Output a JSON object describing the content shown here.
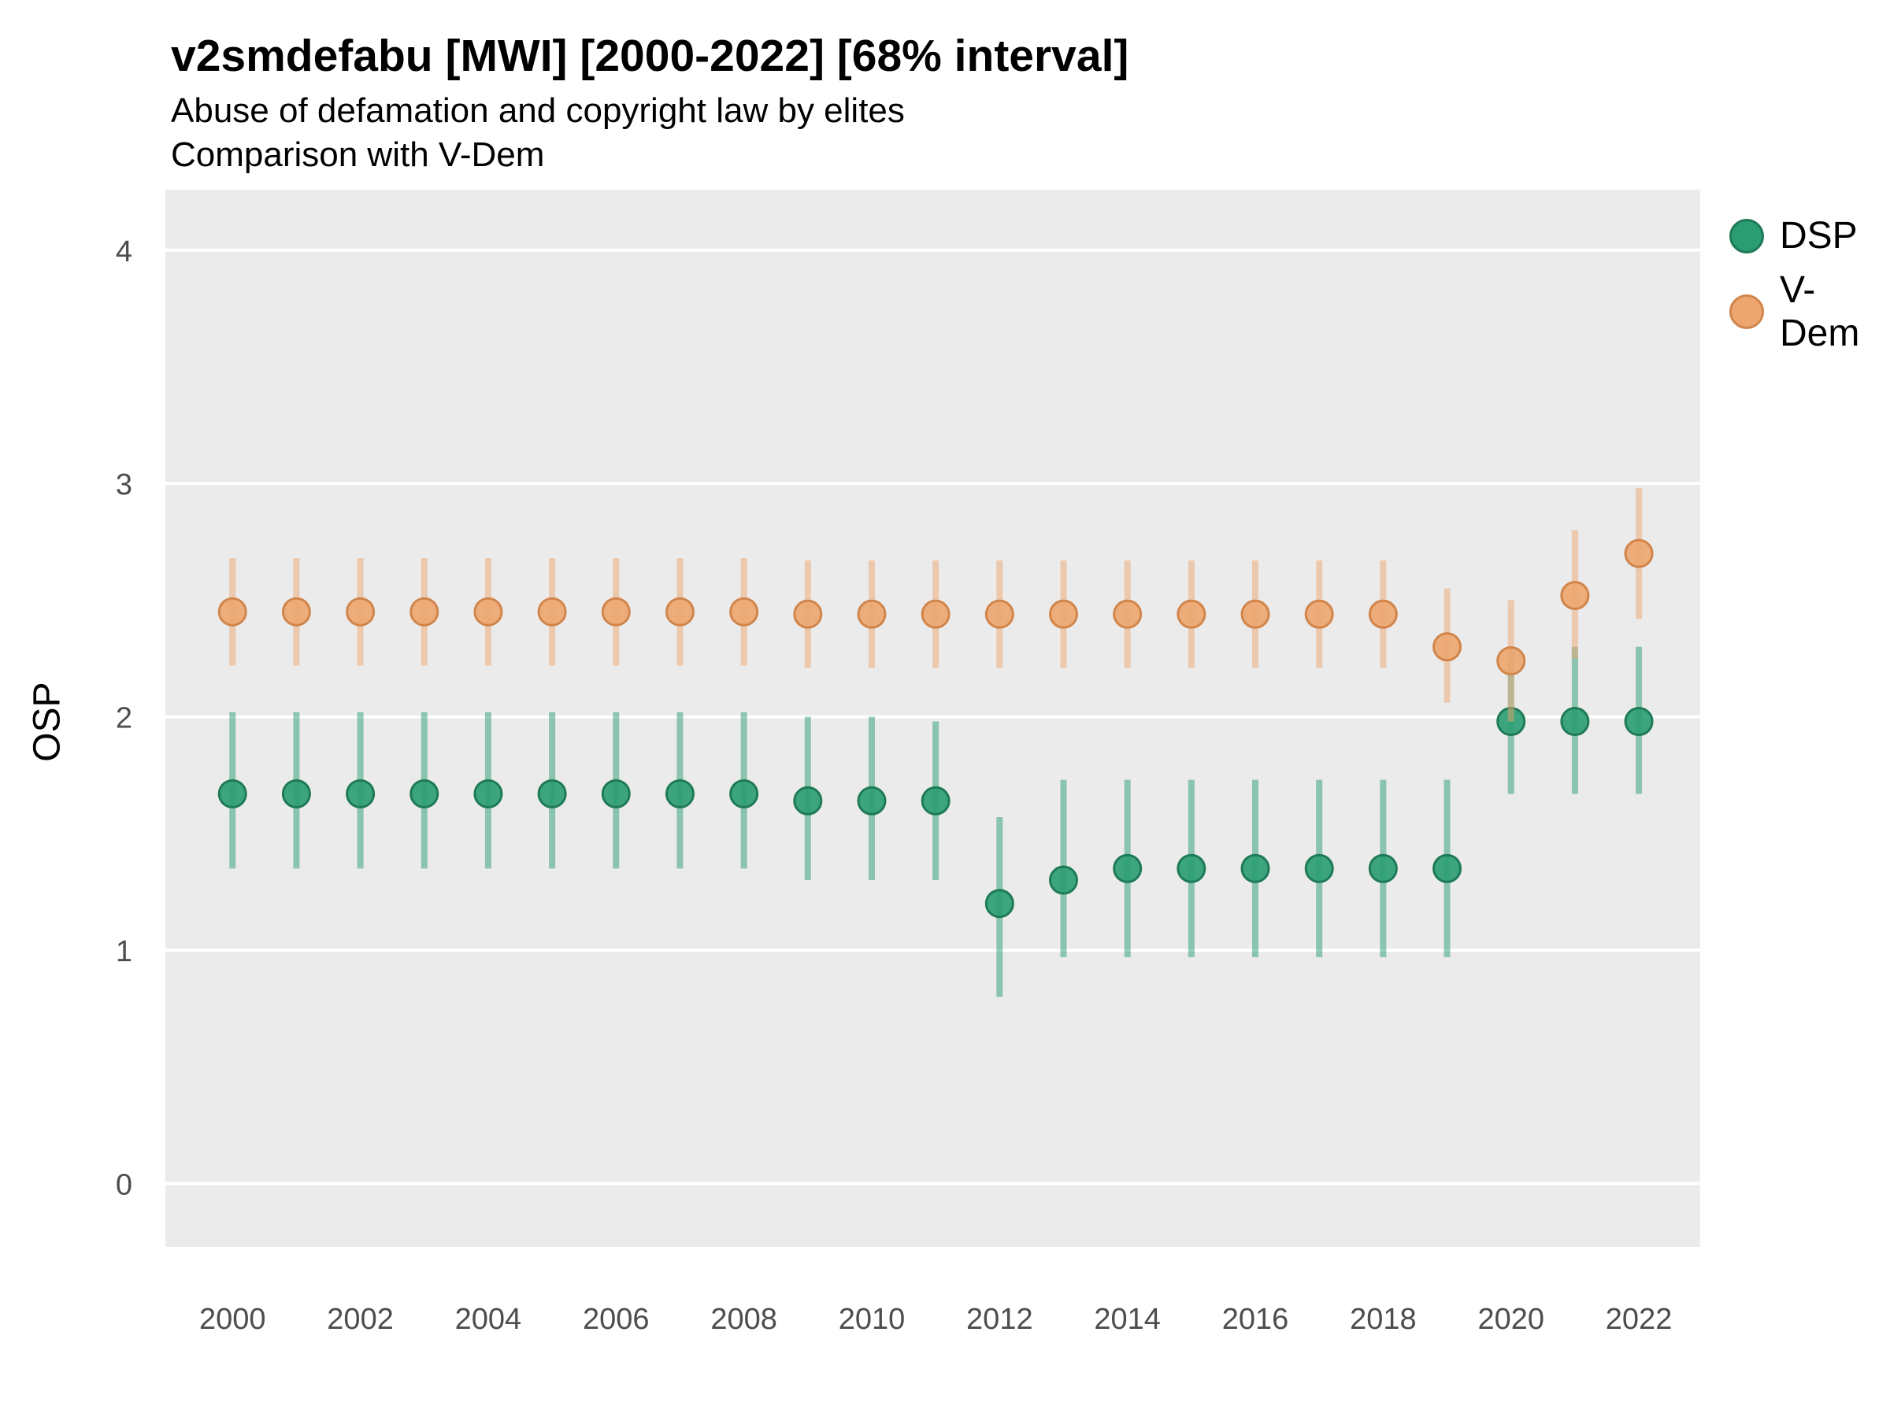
{
  "header": {
    "title": "v2smdefabu [MWI] [2000-2022] [68% interval]",
    "subtitle": "Abuse of defamation and copyright law by elites",
    "note": "Comparison with V-Dem"
  },
  "chart_data": {
    "type": "scatter",
    "subtype": "pointrange",
    "title": "v2smdefabu [MWI] [2000-2022] [68% interval]",
    "subtitle": "Abuse of defamation and copyright law by elites",
    "annotation": "Comparison with V-Dem",
    "interval": "68% interval",
    "xlabel": "",
    "ylabel": "OSP",
    "yticks": [
      0,
      1,
      2,
      3,
      4
    ],
    "xticks": [
      2000,
      2002,
      2004,
      2006,
      2008,
      2010,
      2012,
      2014,
      2016,
      2018,
      2020,
      2022
    ],
    "ylim": [
      -0.272,
      4.259
    ],
    "xlim": [
      1998.95,
      2022.96
    ],
    "grid": "horizontal-major",
    "legend_position": "right",
    "panel_bg": "#ebebeb",
    "grid_color": "#ffffff",
    "tick_label_color": "#4d4d4d",
    "series": [
      {
        "name": "DSP",
        "color": "#2a9d72",
        "stroke": "#1e7a57",
        "points": [
          {
            "year": 2000,
            "est": 1.67,
            "lo": 1.35,
            "hi": 2.02
          },
          {
            "year": 2001,
            "est": 1.67,
            "lo": 1.35,
            "hi": 2.02
          },
          {
            "year": 2002,
            "est": 1.67,
            "lo": 1.35,
            "hi": 2.02
          },
          {
            "year": 2003,
            "est": 1.67,
            "lo": 1.35,
            "hi": 2.02
          },
          {
            "year": 2004,
            "est": 1.67,
            "lo": 1.35,
            "hi": 2.02
          },
          {
            "year": 2005,
            "est": 1.67,
            "lo": 1.35,
            "hi": 2.02
          },
          {
            "year": 2006,
            "est": 1.67,
            "lo": 1.35,
            "hi": 2.02
          },
          {
            "year": 2007,
            "est": 1.67,
            "lo": 1.35,
            "hi": 2.02
          },
          {
            "year": 2008,
            "est": 1.67,
            "lo": 1.35,
            "hi": 2.02
          },
          {
            "year": 2009,
            "est": 1.64,
            "lo": 1.3,
            "hi": 2.0
          },
          {
            "year": 2010,
            "est": 1.64,
            "lo": 1.3,
            "hi": 2.0
          },
          {
            "year": 2011,
            "est": 1.64,
            "lo": 1.3,
            "hi": 1.98
          },
          {
            "year": 2012,
            "est": 1.2,
            "lo": 0.8,
            "hi": 1.57
          },
          {
            "year": 2013,
            "est": 1.3,
            "lo": 0.97,
            "hi": 1.73
          },
          {
            "year": 2014,
            "est": 1.35,
            "lo": 0.97,
            "hi": 1.73
          },
          {
            "year": 2015,
            "est": 1.35,
            "lo": 0.97,
            "hi": 1.73
          },
          {
            "year": 2016,
            "est": 1.35,
            "lo": 0.97,
            "hi": 1.73
          },
          {
            "year": 2017,
            "est": 1.35,
            "lo": 0.97,
            "hi": 1.73
          },
          {
            "year": 2018,
            "est": 1.35,
            "lo": 0.97,
            "hi": 1.73
          },
          {
            "year": 2019,
            "est": 1.35,
            "lo": 0.97,
            "hi": 1.73
          },
          {
            "year": 2020,
            "est": 1.98,
            "lo": 1.67,
            "hi": 2.3
          },
          {
            "year": 2021,
            "est": 1.98,
            "lo": 1.67,
            "hi": 2.3
          },
          {
            "year": 2022,
            "est": 1.98,
            "lo": 1.67,
            "hi": 2.3
          }
        ]
      },
      {
        "name": "V-Dem",
        "color": "#eda66f",
        "stroke": "#d1854a",
        "points": [
          {
            "year": 2000,
            "est": 2.45,
            "lo": 2.22,
            "hi": 2.68
          },
          {
            "year": 2001,
            "est": 2.45,
            "lo": 2.22,
            "hi": 2.68
          },
          {
            "year": 2002,
            "est": 2.45,
            "lo": 2.22,
            "hi": 2.68
          },
          {
            "year": 2003,
            "est": 2.45,
            "lo": 2.22,
            "hi": 2.68
          },
          {
            "year": 2004,
            "est": 2.45,
            "lo": 2.22,
            "hi": 2.68
          },
          {
            "year": 2005,
            "est": 2.45,
            "lo": 2.22,
            "hi": 2.68
          },
          {
            "year": 2006,
            "est": 2.45,
            "lo": 2.22,
            "hi": 2.68
          },
          {
            "year": 2007,
            "est": 2.45,
            "lo": 2.22,
            "hi": 2.68
          },
          {
            "year": 2008,
            "est": 2.45,
            "lo": 2.22,
            "hi": 2.68
          },
          {
            "year": 2009,
            "est": 2.44,
            "lo": 2.21,
            "hi": 2.67
          },
          {
            "year": 2010,
            "est": 2.44,
            "lo": 2.21,
            "hi": 2.67
          },
          {
            "year": 2011,
            "est": 2.44,
            "lo": 2.21,
            "hi": 2.67
          },
          {
            "year": 2012,
            "est": 2.44,
            "lo": 2.21,
            "hi": 2.67
          },
          {
            "year": 2013,
            "est": 2.44,
            "lo": 2.21,
            "hi": 2.67
          },
          {
            "year": 2014,
            "est": 2.44,
            "lo": 2.21,
            "hi": 2.67
          },
          {
            "year": 2015,
            "est": 2.44,
            "lo": 2.21,
            "hi": 2.67
          },
          {
            "year": 2016,
            "est": 2.44,
            "lo": 2.21,
            "hi": 2.67
          },
          {
            "year": 2017,
            "est": 2.44,
            "lo": 2.21,
            "hi": 2.67
          },
          {
            "year": 2018,
            "est": 2.44,
            "lo": 2.21,
            "hi": 2.67
          },
          {
            "year": 2019,
            "est": 2.3,
            "lo": 2.06,
            "hi": 2.55
          },
          {
            "year": 2020,
            "est": 2.24,
            "lo": 1.98,
            "hi": 2.5
          },
          {
            "year": 2021,
            "est": 2.52,
            "lo": 2.25,
            "hi": 2.8
          },
          {
            "year": 2022,
            "est": 2.7,
            "lo": 2.42,
            "hi": 2.98
          }
        ]
      }
    ]
  }
}
